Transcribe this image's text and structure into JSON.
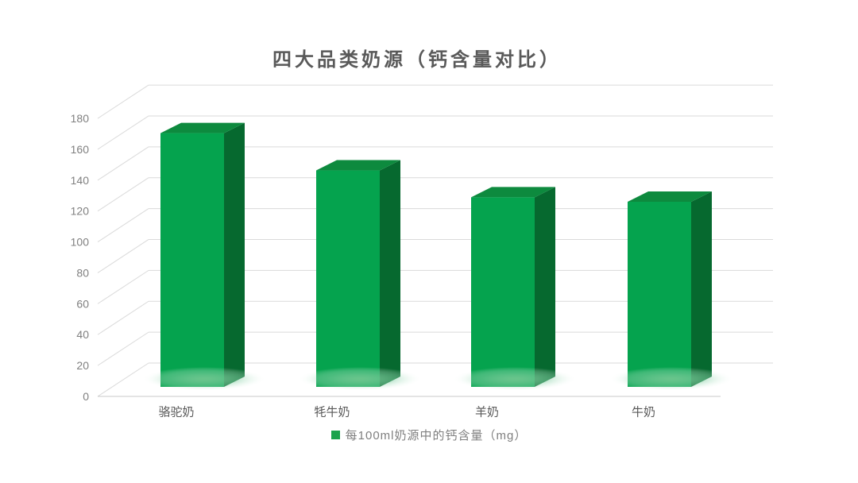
{
  "title": "四大品类奶源（钙含量对比）",
  "chart_data": {
    "type": "bar",
    "variant": "3d-column",
    "title": "四大品类奶源（钙含量对比）",
    "categories": [
      "骆驼奶",
      "牦牛奶",
      "羊奶",
      "牛奶"
    ],
    "series": [
      {
        "name": "每100ml奶源中的钙含量（mg）",
        "values": [
          170,
          145,
          127,
          124
        ]
      }
    ],
    "xlabel": "",
    "ylabel": "",
    "ylim": [
      0,
      180
    ],
    "ytick_step": 20,
    "yticks": [
      0,
      20,
      40,
      60,
      80,
      100,
      120,
      140,
      160,
      180
    ],
    "grid": true,
    "legend_position": "bottom"
  },
  "legend": {
    "label": "每100ml奶源中的钙含量（mg）"
  },
  "colors": {
    "background": "#FFFFFF",
    "bar_front": "#05A34E",
    "bar_top": "#0D8A3E",
    "bar_side": "#06692F",
    "glow": "#7CCB93",
    "gridline": "#DADADA",
    "axis_line": "#C8C8C8",
    "title_text": "#595959",
    "axis_text": "#7F7F7F",
    "category_text": "#595959",
    "legend_marker": "#1BA24C",
    "legend_text": "#7F7F7F"
  }
}
